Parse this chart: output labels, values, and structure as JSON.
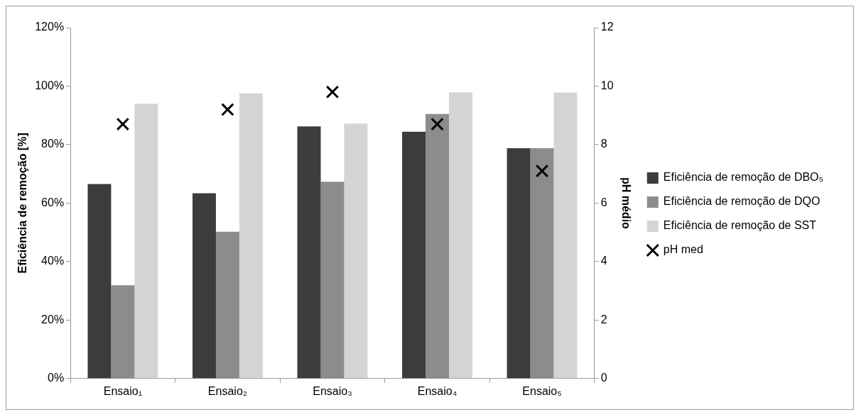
{
  "chart_data": {
    "type": "bar",
    "categories": [
      "Ensaio₁",
      "Ensaio₂",
      "Ensaio₃",
      "Ensaio₄",
      "Ensaio₅"
    ],
    "ylabel": "Eficiência de remoção [%]",
    "y2label": "pH médio",
    "ylim": [
      0,
      120
    ],
    "yticks": [
      {
        "value": 0,
        "label": "0%"
      },
      {
        "value": 20,
        "label": "20%"
      },
      {
        "value": 40,
        "label": "40%"
      },
      {
        "value": 60,
        "label": "60%"
      },
      {
        "value": 80,
        "label": "80%"
      },
      {
        "value": 100,
        "label": "100%"
      },
      {
        "value": 120,
        "label": "120%"
      }
    ],
    "y2lim": [
      0,
      12
    ],
    "y2ticks": [
      0,
      2,
      4,
      6,
      8,
      10,
      12
    ],
    "grid": false,
    "legend": "right",
    "series": [
      {
        "name": "Eficiência de remoção de DBO₅",
        "color": "#3c3c3c",
        "values": [
          66.5,
          63.4,
          86.2,
          84.4,
          78.8
        ]
      },
      {
        "name": "Eficiência de remoção de DQO",
        "color": "#8c8c8c",
        "values": [
          31.9,
          50.2,
          67.3,
          90.5,
          78.8
        ]
      },
      {
        "name": "Eficiência de remoção de SST",
        "color": "#d4d4d4",
        "values": [
          94,
          97.5,
          87.2,
          97.9,
          97.8
        ]
      },
      {
        "name": "pH med",
        "type": "scatter",
        "axis": "y2",
        "marker": "cross",
        "color": "#000000",
        "values": [
          8.7,
          9.2,
          9.8,
          8.7,
          7.1
        ]
      }
    ]
  }
}
